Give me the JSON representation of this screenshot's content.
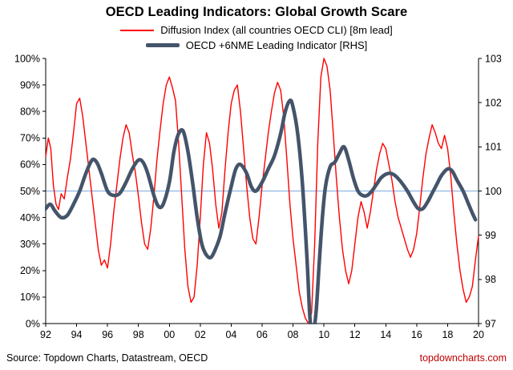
{
  "title": "OECD Leading Indicators: Global Growth Scare",
  "legend": [
    {
      "label": "Diffusion Index (all countries OECD CLI) [8m lead]",
      "color": "#FF0000"
    },
    {
      "label": "OECD +6NME Leading Indicator [RHS]",
      "color": "#44546A"
    }
  ],
  "footer": {
    "source": "Source: Topdown Charts, Datastream, OECD",
    "site": "topdowncharts.com"
  },
  "colors": {
    "reference_line": "#8EB4E3",
    "axis": "#000000"
  },
  "chart_data": {
    "type": "line",
    "title": "OECD Leading Indicators: Global Growth Scare",
    "x_range": [
      1992,
      2020
    ],
    "x_tick_years": [
      1992,
      1994,
      1996,
      1998,
      2000,
      2002,
      2004,
      2006,
      2008,
      2010,
      2012,
      2014,
      2016,
      2018,
      2020
    ],
    "x_tick_labels": [
      "92",
      "94",
      "96",
      "98",
      "00",
      "02",
      "04",
      "06",
      "08",
      "10",
      "12",
      "14",
      "16",
      "18",
      "20"
    ],
    "left_axis": {
      "range": [
        0,
        100
      ],
      "ticks": [
        "0%",
        "10%",
        "20%",
        "30%",
        "40%",
        "50%",
        "60%",
        "70%",
        "80%",
        "90%",
        "100%"
      ]
    },
    "right_axis": {
      "range": [
        97,
        103
      ],
      "ticks": [
        "97",
        "98",
        "99",
        "100",
        "101",
        "102",
        "103"
      ]
    },
    "reference_line": {
      "left_value": 50,
      "right_value": 100,
      "color": "#8EB4E3"
    },
    "grid": false,
    "legend_position": "top",
    "series": [
      {
        "name": "Diffusion Index (all countries OECD CLI) [8m lead]",
        "axis": "left",
        "color": "#FF0000",
        "width": 1.4,
        "smooth": false,
        "points": [
          [
            1992.0,
            63
          ],
          [
            1992.17,
            70
          ],
          [
            1992.33,
            66
          ],
          [
            1992.5,
            52
          ],
          [
            1992.67,
            45
          ],
          [
            1992.83,
            43
          ],
          [
            1993.0,
            49
          ],
          [
            1993.2,
            47
          ],
          [
            1993.4,
            55
          ],
          [
            1993.6,
            62
          ],
          [
            1993.8,
            72
          ],
          [
            1994.0,
            83
          ],
          [
            1994.2,
            85
          ],
          [
            1994.4,
            78
          ],
          [
            1994.6,
            68
          ],
          [
            1994.8,
            58
          ],
          [
            1995.0,
            48
          ],
          [
            1995.2,
            38
          ],
          [
            1995.4,
            28
          ],
          [
            1995.6,
            22
          ],
          [
            1995.8,
            24
          ],
          [
            1996.0,
            21
          ],
          [
            1996.2,
            30
          ],
          [
            1996.4,
            42
          ],
          [
            1996.6,
            52
          ],
          [
            1996.8,
            62
          ],
          [
            1997.0,
            70
          ],
          [
            1997.2,
            75
          ],
          [
            1997.4,
            72
          ],
          [
            1997.6,
            64
          ],
          [
            1997.8,
            57
          ],
          [
            1998.0,
            48
          ],
          [
            1998.2,
            38
          ],
          [
            1998.4,
            30
          ],
          [
            1998.6,
            28
          ],
          [
            1998.8,
            36
          ],
          [
            1999.0,
            48
          ],
          [
            1999.2,
            62
          ],
          [
            1999.4,
            73
          ],
          [
            1999.6,
            83
          ],
          [
            1999.8,
            90
          ],
          [
            2000.0,
            93
          ],
          [
            2000.2,
            89
          ],
          [
            2000.4,
            84
          ],
          [
            2000.6,
            68
          ],
          [
            2000.8,
            48
          ],
          [
            2001.0,
            28
          ],
          [
            2001.2,
            14
          ],
          [
            2001.4,
            8
          ],
          [
            2001.6,
            10
          ],
          [
            2001.8,
            22
          ],
          [
            2002.0,
            40
          ],
          [
            2002.2,
            60
          ],
          [
            2002.4,
            72
          ],
          [
            2002.6,
            68
          ],
          [
            2002.8,
            58
          ],
          [
            2003.0,
            45
          ],
          [
            2003.2,
            36
          ],
          [
            2003.4,
            42
          ],
          [
            2003.6,
            58
          ],
          [
            2003.8,
            72
          ],
          [
            2004.0,
            83
          ],
          [
            2004.2,
            88
          ],
          [
            2004.4,
            90
          ],
          [
            2004.6,
            80
          ],
          [
            2004.8,
            66
          ],
          [
            2005.0,
            52
          ],
          [
            2005.2,
            40
          ],
          [
            2005.4,
            32
          ],
          [
            2005.6,
            30
          ],
          [
            2005.8,
            40
          ],
          [
            2006.0,
            52
          ],
          [
            2006.2,
            62
          ],
          [
            2006.4,
            72
          ],
          [
            2006.6,
            80
          ],
          [
            2006.8,
            87
          ],
          [
            2007.0,
            91
          ],
          [
            2007.2,
            88
          ],
          [
            2007.4,
            78
          ],
          [
            2007.6,
            62
          ],
          [
            2007.8,
            45
          ],
          [
            2008.0,
            32
          ],
          [
            2008.2,
            22
          ],
          [
            2008.4,
            12
          ],
          [
            2008.6,
            6
          ],
          [
            2008.8,
            2
          ],
          [
            2009.0,
            0
          ],
          [
            2009.2,
            4
          ],
          [
            2009.4,
            30
          ],
          [
            2009.6,
            68
          ],
          [
            2009.8,
            93
          ],
          [
            2010.0,
            100
          ],
          [
            2010.2,
            97
          ],
          [
            2010.4,
            88
          ],
          [
            2010.6,
            72
          ],
          [
            2010.8,
            55
          ],
          [
            2011.0,
            40
          ],
          [
            2011.2,
            28
          ],
          [
            2011.4,
            20
          ],
          [
            2011.6,
            15
          ],
          [
            2011.8,
            20
          ],
          [
            2012.0,
            30
          ],
          [
            2012.2,
            40
          ],
          [
            2012.4,
            46
          ],
          [
            2012.6,
            42
          ],
          [
            2012.8,
            36
          ],
          [
            2013.0,
            42
          ],
          [
            2013.2,
            50
          ],
          [
            2013.4,
            58
          ],
          [
            2013.6,
            64
          ],
          [
            2013.8,
            68
          ],
          [
            2014.0,
            66
          ],
          [
            2014.2,
            60
          ],
          [
            2014.4,
            54
          ],
          [
            2014.6,
            46
          ],
          [
            2014.8,
            40
          ],
          [
            2015.0,
            36
          ],
          [
            2015.2,
            32
          ],
          [
            2015.4,
            28
          ],
          [
            2015.6,
            25
          ],
          [
            2015.8,
            28
          ],
          [
            2016.0,
            34
          ],
          [
            2016.2,
            44
          ],
          [
            2016.4,
            55
          ],
          [
            2016.6,
            64
          ],
          [
            2016.8,
            70
          ],
          [
            2017.0,
            75
          ],
          [
            2017.2,
            72
          ],
          [
            2017.4,
            68
          ],
          [
            2017.6,
            66
          ],
          [
            2017.8,
            71
          ],
          [
            2018.0,
            66
          ],
          [
            2018.2,
            56
          ],
          [
            2018.4,
            42
          ],
          [
            2018.6,
            30
          ],
          [
            2018.8,
            20
          ],
          [
            2019.0,
            13
          ],
          [
            2019.2,
            8
          ],
          [
            2019.4,
            10
          ],
          [
            2019.6,
            14
          ],
          [
            2019.8,
            24
          ],
          [
            2020.0,
            33
          ]
        ]
      },
      {
        "name": "OECD +6NME Leading Indicator [RHS]",
        "axis": "right",
        "color": "#44546A",
        "width": 4.5,
        "smooth": true,
        "points": [
          [
            1992.0,
            99.6
          ],
          [
            1992.3,
            99.7
          ],
          [
            1992.6,
            99.55
          ],
          [
            1993.0,
            99.4
          ],
          [
            1993.4,
            99.45
          ],
          [
            1993.8,
            99.7
          ],
          [
            1994.2,
            100.0
          ],
          [
            1994.6,
            100.4
          ],
          [
            1995.0,
            100.7
          ],
          [
            1995.3,
            100.65
          ],
          [
            1995.6,
            100.4
          ],
          [
            1996.0,
            100.0
          ],
          [
            1996.4,
            99.9
          ],
          [
            1996.8,
            99.95
          ],
          [
            1997.2,
            100.2
          ],
          [
            1997.6,
            100.5
          ],
          [
            1998.0,
            100.7
          ],
          [
            1998.3,
            100.65
          ],
          [
            1998.6,
            100.4
          ],
          [
            1999.0,
            99.9
          ],
          [
            1999.3,
            99.65
          ],
          [
            1999.6,
            99.7
          ],
          [
            2000.0,
            100.2
          ],
          [
            2000.3,
            100.9
          ],
          [
            2000.6,
            101.3
          ],
          [
            2000.9,
            101.35
          ],
          [
            2001.2,
            100.9
          ],
          [
            2001.5,
            100.2
          ],
          [
            2001.8,
            99.4
          ],
          [
            2002.1,
            98.8
          ],
          [
            2002.4,
            98.55
          ],
          [
            2002.7,
            98.5
          ],
          [
            2003.0,
            98.7
          ],
          [
            2003.3,
            99.0
          ],
          [
            2003.6,
            99.5
          ],
          [
            2004.0,
            100.1
          ],
          [
            2004.3,
            100.5
          ],
          [
            2004.6,
            100.6
          ],
          [
            2005.0,
            100.4
          ],
          [
            2005.3,
            100.1
          ],
          [
            2005.6,
            100.0
          ],
          [
            2006.0,
            100.2
          ],
          [
            2006.4,
            100.5
          ],
          [
            2006.8,
            100.8
          ],
          [
            2007.2,
            101.3
          ],
          [
            2007.5,
            101.8
          ],
          [
            2007.8,
            102.05
          ],
          [
            2008.0,
            101.9
          ],
          [
            2008.3,
            101.3
          ],
          [
            2008.6,
            100.2
          ],
          [
            2008.9,
            98.5
          ],
          [
            2009.1,
            97.1
          ],
          [
            2009.3,
            96.8
          ],
          [
            2009.5,
            97.3
          ],
          [
            2009.7,
            98.4
          ],
          [
            2009.9,
            99.4
          ],
          [
            2010.1,
            100.1
          ],
          [
            2010.4,
            100.55
          ],
          [
            2010.7,
            100.65
          ],
          [
            2011.0,
            100.85
          ],
          [
            2011.3,
            101.0
          ],
          [
            2011.6,
            100.7
          ],
          [
            2011.9,
            100.3
          ],
          [
            2012.2,
            100.0
          ],
          [
            2012.5,
            99.9
          ],
          [
            2012.8,
            99.9
          ],
          [
            2013.1,
            100.0
          ],
          [
            2013.4,
            100.15
          ],
          [
            2013.7,
            100.3
          ],
          [
            2014.0,
            100.38
          ],
          [
            2014.3,
            100.4
          ],
          [
            2014.6,
            100.35
          ],
          [
            2015.0,
            100.2
          ],
          [
            2015.4,
            100.0
          ],
          [
            2015.8,
            99.75
          ],
          [
            2016.1,
            99.6
          ],
          [
            2016.4,
            99.6
          ],
          [
            2016.7,
            99.75
          ],
          [
            2017.0,
            99.95
          ],
          [
            2017.3,
            100.15
          ],
          [
            2017.6,
            100.35
          ],
          [
            2018.0,
            100.5
          ],
          [
            2018.3,
            100.45
          ],
          [
            2018.6,
            100.25
          ],
          [
            2019.0,
            100.0
          ],
          [
            2019.3,
            99.75
          ],
          [
            2019.6,
            99.5
          ],
          [
            2019.8,
            99.35
          ]
        ]
      }
    ]
  }
}
